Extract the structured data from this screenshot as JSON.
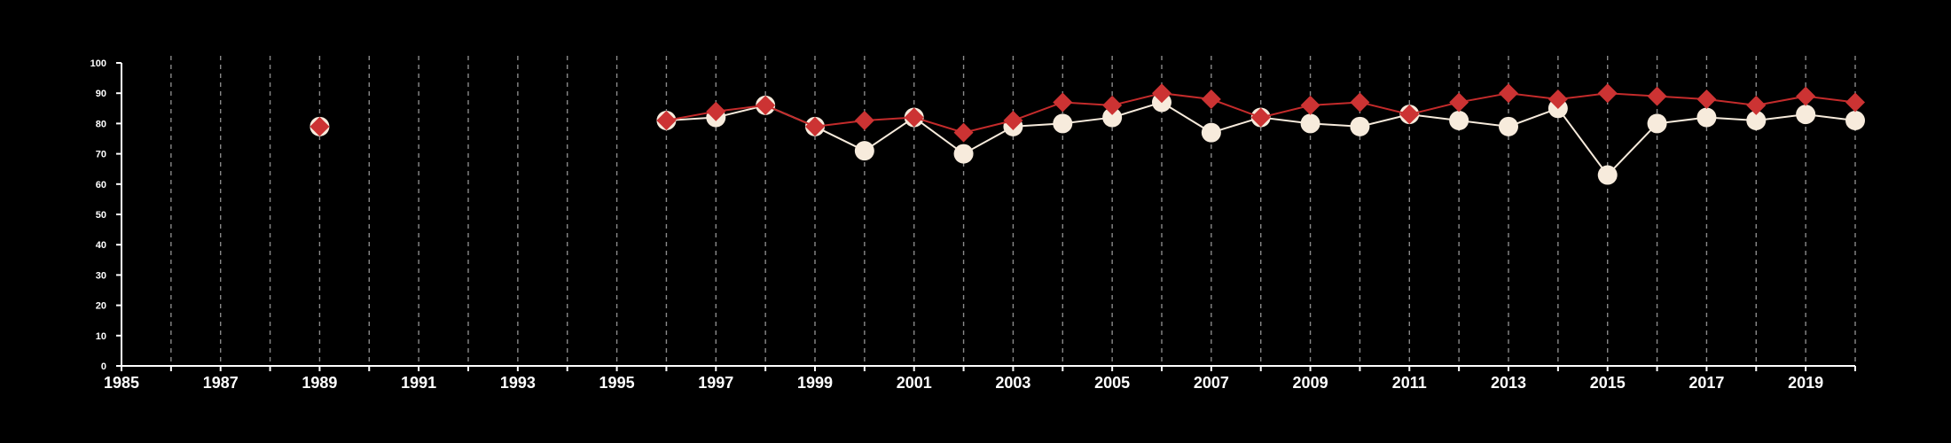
{
  "chart_data": {
    "type": "line",
    "title": "",
    "xlabel": "",
    "ylabel": "",
    "xlim": [
      1985,
      2020
    ],
    "ylim": [
      0,
      100
    ],
    "x_ticks": [
      "1985",
      "1987",
      "1989",
      "1991",
      "1993",
      "1995",
      "1997",
      "1999",
      "2001",
      "2003",
      "2005",
      "2007",
      "2009",
      "2011",
      "2013",
      "2015",
      "2017",
      "2019"
    ],
    "y_ticks": [
      "0",
      "10",
      "20",
      "30",
      "40",
      "50",
      "60",
      "70",
      "80",
      "90",
      "100"
    ],
    "grid": "vertical dashed at every year",
    "series": [
      {
        "marker": "diamond",
        "color": "#cc3333",
        "x": [
          1989,
          1996,
          1997,
          1998,
          1999,
          2000,
          2001,
          2002,
          2003,
          2004,
          2005,
          2006,
          2007,
          2008,
          2009,
          2010,
          2011,
          2012,
          2013,
          2014,
          2015,
          2016,
          2017,
          2018,
          2019,
          2020
        ],
        "y": [
          79,
          81,
          84,
          86,
          79,
          81,
          82,
          77,
          81,
          87,
          86,
          90,
          88,
          82,
          86,
          87,
          83,
          87,
          90,
          88,
          90,
          89,
          88,
          86,
          89,
          87
        ]
      },
      {
        "marker": "circle",
        "color": "#f7ebdc",
        "x": [
          1989,
          1996,
          1997,
          1998,
          1999,
          2000,
          2001,
          2002,
          2003,
          2004,
          2005,
          2006,
          2007,
          2008,
          2009,
          2010,
          2011,
          2012,
          2013,
          2014,
          2015,
          2016,
          2017,
          2018,
          2019,
          2020
        ],
        "y": [
          79,
          81,
          82,
          86,
          79,
          71,
          82,
          70,
          79,
          80,
          82,
          87,
          77,
          82,
          80,
          79,
          83,
          81,
          79,
          85,
          63,
          80,
          82,
          81,
          83,
          81
        ]
      }
    ]
  }
}
